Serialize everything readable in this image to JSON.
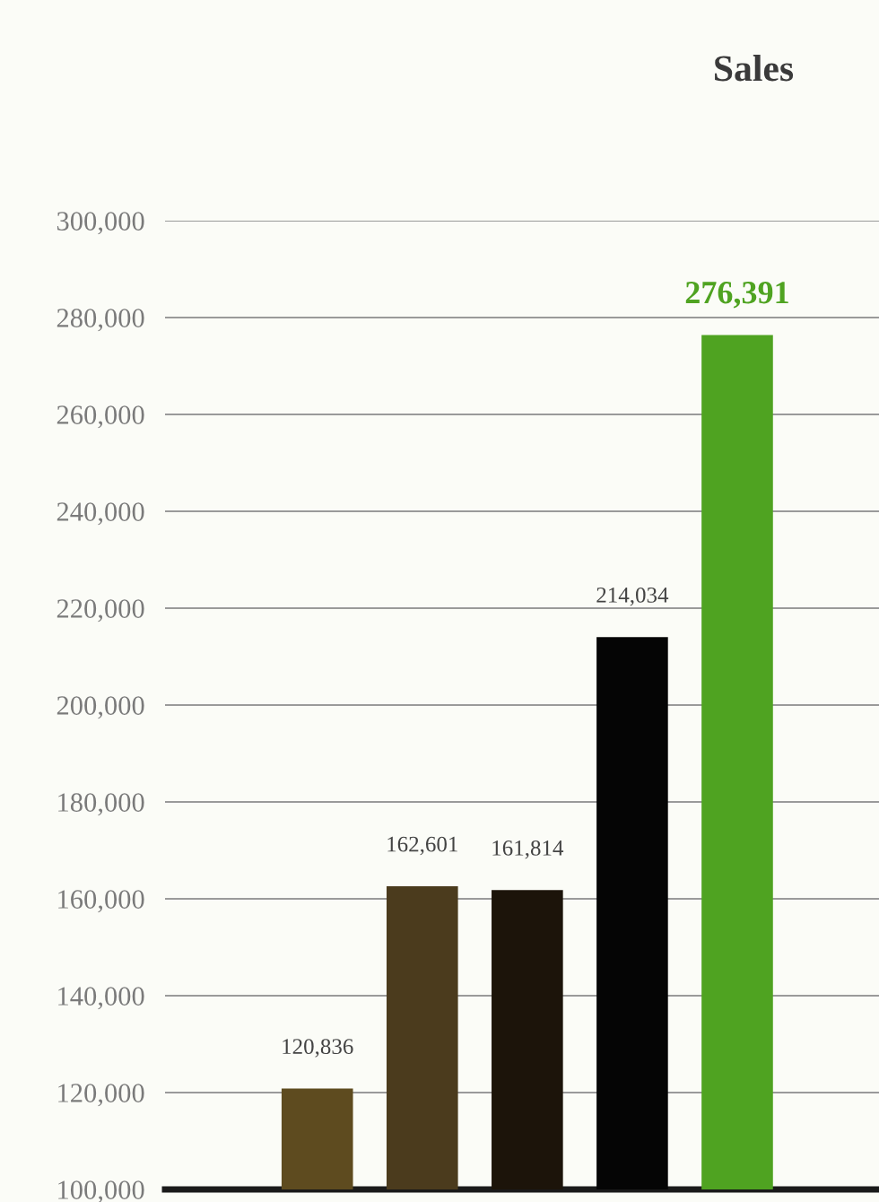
{
  "chart_data": {
    "type": "bar",
    "title": "Sales",
    "categories": [
      null,
      null,
      null,
      null,
      null
    ],
    "values": [
      120836,
      162601,
      161814,
      214034,
      276391
    ],
    "colors": [
      "#5e4b1f",
      "#4b3b1d",
      "#1c140a",
      "#050505",
      "#4fa321"
    ],
    "value_labels": [
      "120,836",
      "162,601",
      "161,814",
      "214,034",
      "276,391"
    ],
    "ylim": [
      100000,
      300000
    ],
    "yticks": [
      {
        "value": 100000,
        "label": "100,000"
      },
      {
        "value": 120000,
        "label": "120,000"
      },
      {
        "value": 140000,
        "label": "140,000"
      },
      {
        "value": 160000,
        "label": "160,000"
      },
      {
        "value": 180000,
        "label": "180,000"
      },
      {
        "value": 200000,
        "label": "200,000"
      },
      {
        "value": 220000,
        "label": "220,000"
      },
      {
        "value": 240000,
        "label": "240,000"
      },
      {
        "value": 260000,
        "label": "260,000"
      },
      {
        "value": 280000,
        "label": "280,000"
      },
      {
        "value": 300000,
        "label": "300,000"
      }
    ],
    "grid": "y",
    "tick_labels": "y"
  }
}
